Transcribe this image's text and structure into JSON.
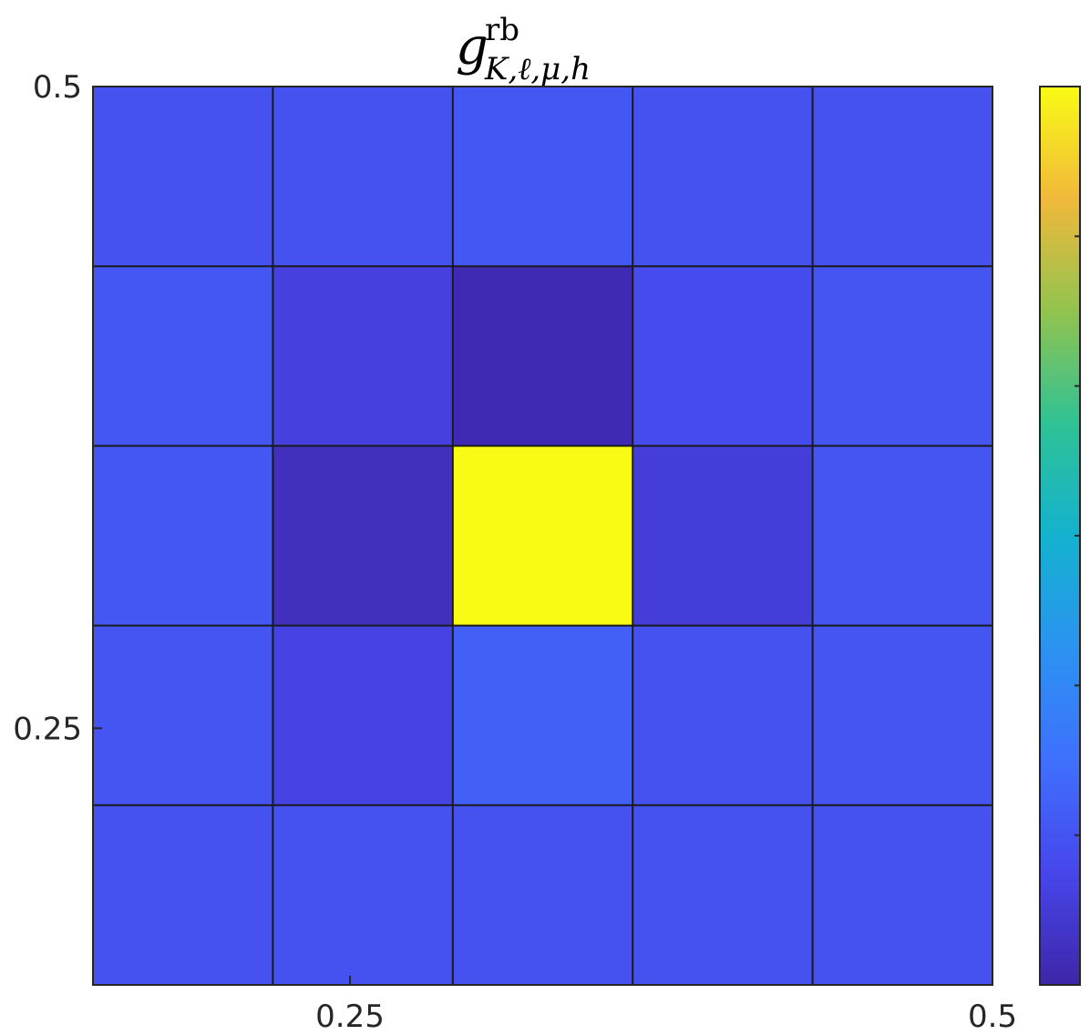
{
  "chart_data": {
    "type": "heatmap",
    "title": {
      "base": "g",
      "superscript": "rb",
      "subscript": "K,ℓ,μ,h"
    },
    "xlabel": "",
    "ylabel": "",
    "xlim": [
      0.15,
      0.5
    ],
    "ylim": [
      0.15,
      0.5
    ],
    "x_ticks": [
      0.25,
      0.5
    ],
    "x_tick_labels": [
      "0.25",
      "0.5"
    ],
    "y_ticks": [
      0.25,
      0.5
    ],
    "y_tick_labels": [
      "0.25",
      "0.5"
    ],
    "grid": true,
    "colormap": "parula",
    "colorbar": true,
    "colorbar_tick_count": 6,
    "colorbar_tick_labels": [],
    "clim": [
      0,
      1
    ],
    "values_normalized": [
      [
        0.16,
        0.16,
        0.18,
        0.16,
        0.16
      ],
      [
        0.18,
        0.1,
        0.02,
        0.14,
        0.17
      ],
      [
        0.18,
        0.04,
        1.0,
        0.09,
        0.17
      ],
      [
        0.17,
        0.11,
        0.2,
        0.16,
        0.17
      ],
      [
        0.16,
        0.16,
        0.16,
        0.16,
        0.16
      ]
    ],
    "colors": {
      "gridline": "#1a1a1a",
      "axis": "#262626"
    }
  }
}
